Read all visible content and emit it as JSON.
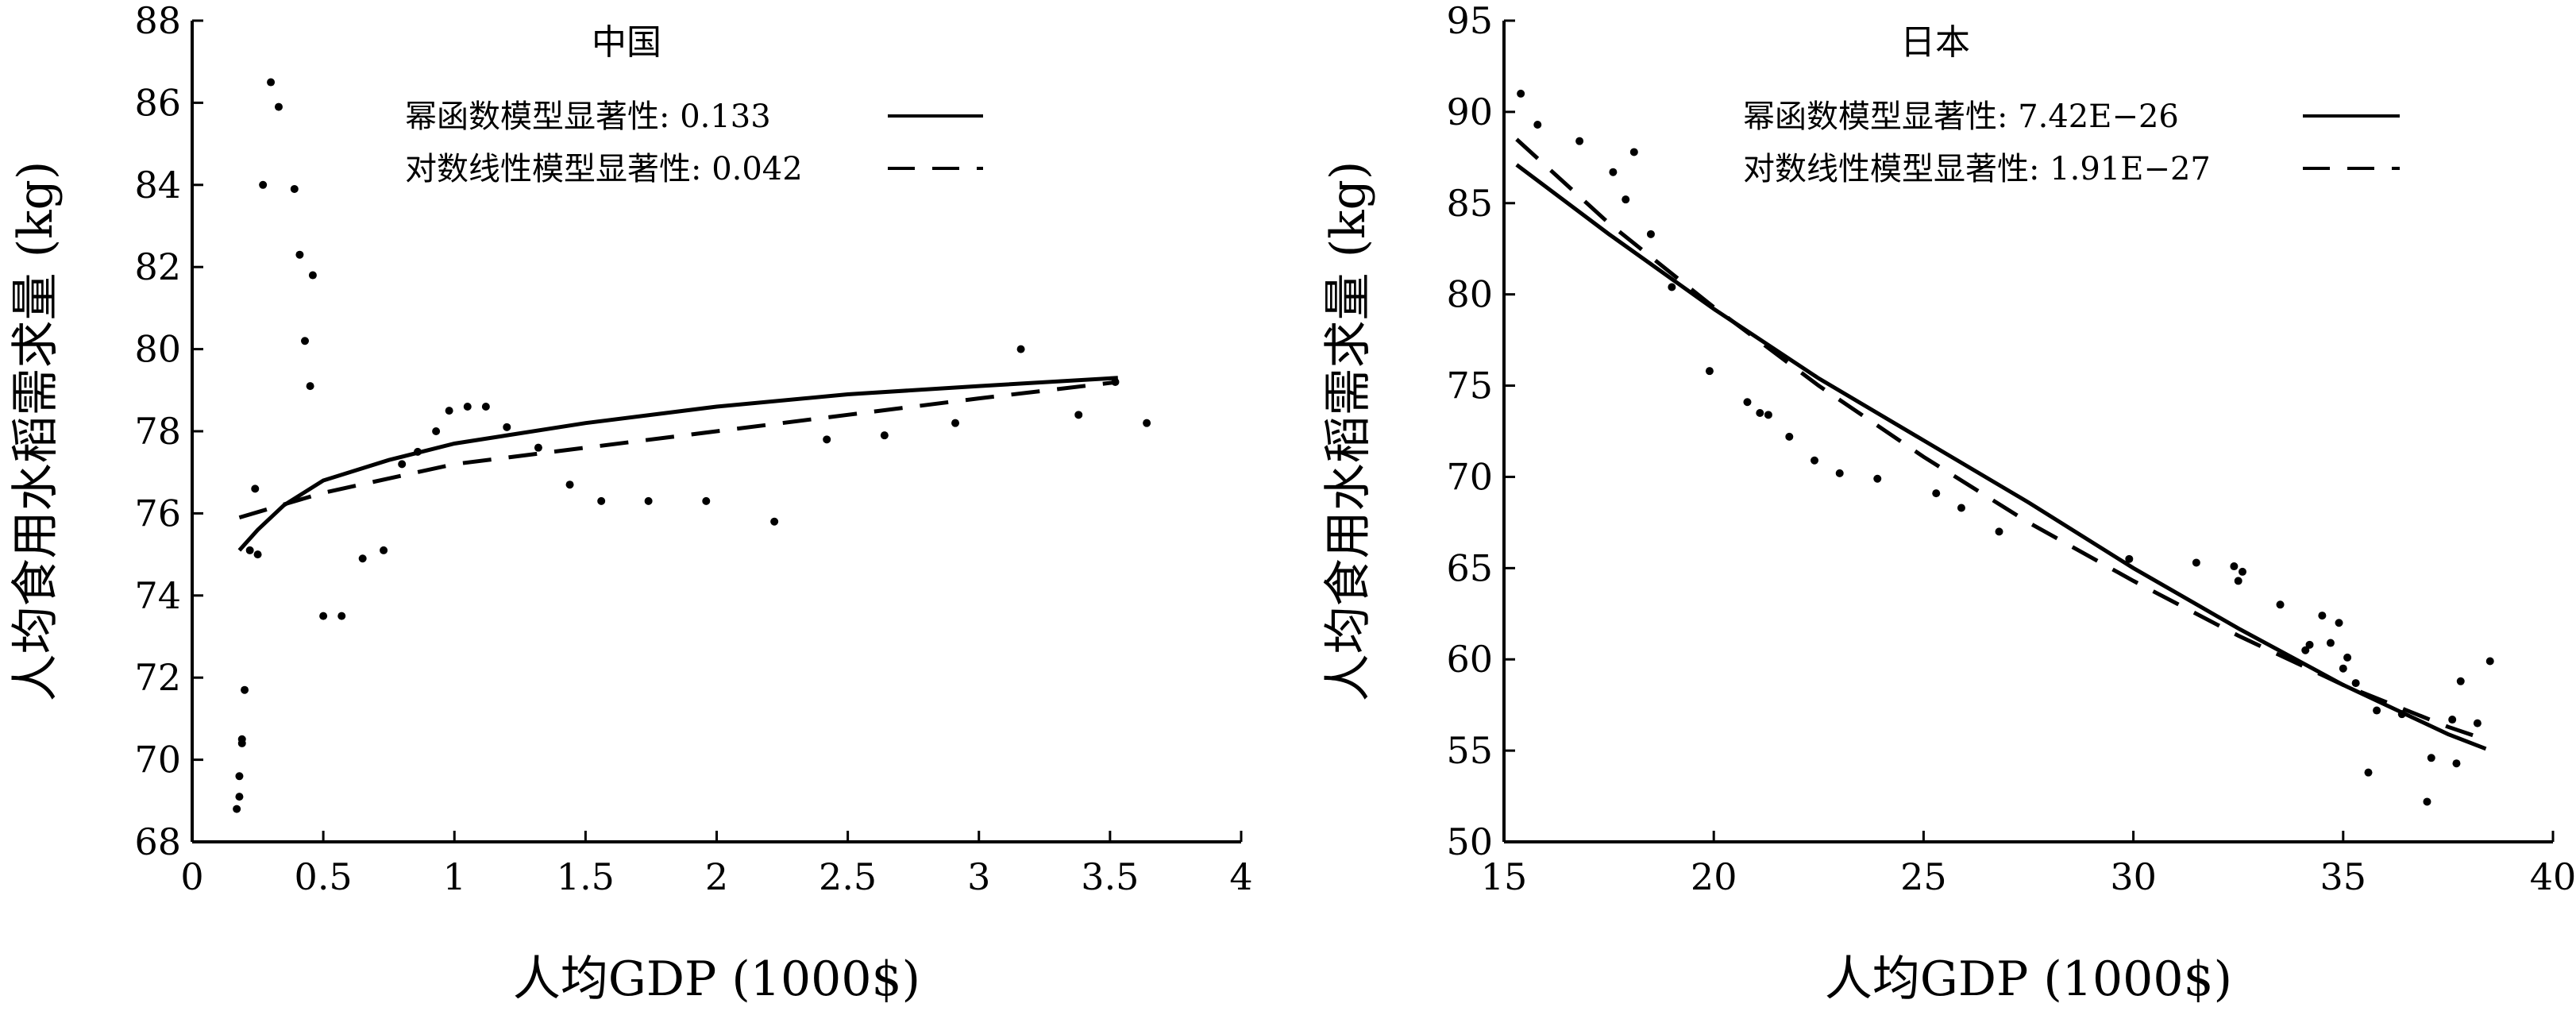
{
  "chart_data": [
    {
      "type": "scatter",
      "title": "中国",
      "xlabel": "人均GDP (1000$)",
      "ylabel": "人均食用水稻需求量 (kg)",
      "xlim": [
        0,
        4
      ],
      "ylim": [
        68,
        88
      ],
      "xticks": [
        0,
        0.5,
        1,
        1.5,
        2,
        2.5,
        3,
        3.5,
        4
      ],
      "yticks": [
        68,
        70,
        72,
        74,
        76,
        78,
        80,
        82,
        84,
        86,
        88
      ],
      "xtick_labels": [
        "0",
        "0.5",
        "1",
        "1.5",
        "2",
        "2.5",
        "3",
        "3.5",
        "4"
      ],
      "ytick_labels": [
        "68",
        "70",
        "72",
        "74",
        "76",
        "78",
        "80",
        "82",
        "84",
        "86",
        "88"
      ],
      "grid": false,
      "legend_position": "top-center",
      "legend": [
        {
          "label": "幂函数模型显著性: 0.133",
          "style": "solid"
        },
        {
          "label": "对数线性模型显著性: 0.042",
          "style": "dashed"
        }
      ],
      "series": [
        {
          "kind": "points",
          "x": [
            0.17,
            0.18,
            0.18,
            0.19,
            0.19,
            0.2,
            0.22,
            0.24,
            0.25,
            0.27,
            0.3,
            0.33,
            0.39,
            0.41,
            0.43,
            0.45,
            0.46,
            0.5,
            0.57,
            0.65,
            0.73,
            0.8,
            0.86,
            0.93,
            0.98,
            1.05,
            1.12,
            1.2,
            1.32,
            1.44,
            1.56,
            1.74,
            1.96,
            2.22,
            2.42,
            2.64,
            2.91,
            3.16,
            3.38,
            3.52,
            3.64
          ],
          "y": [
            68.8,
            69.1,
            69.6,
            70.4,
            70.5,
            71.7,
            75.1,
            76.6,
            75.0,
            84.0,
            86.5,
            85.9,
            83.9,
            82.3,
            80.2,
            79.1,
            81.8,
            73.5,
            73.5,
            74.9,
            75.1,
            77.2,
            77.5,
            78.0,
            78.5,
            78.6,
            78.6,
            78.1,
            77.6,
            76.7,
            76.3,
            76.3,
            76.3,
            75.8,
            77.8,
            77.9,
            78.2,
            80.0,
            78.4,
            79.2,
            78.2
          ]
        },
        {
          "kind": "line",
          "name": "幂函数模型",
          "style": "solid",
          "x": [
            0.18,
            0.25,
            0.35,
            0.5,
            0.75,
            1.0,
            1.5,
            2.0,
            2.5,
            3.0,
            3.53
          ],
          "y": [
            75.1,
            75.6,
            76.2,
            76.8,
            77.3,
            77.7,
            78.2,
            78.6,
            78.9,
            79.1,
            79.3
          ]
        },
        {
          "kind": "line",
          "name": "对数线性模型",
          "style": "dashed",
          "x": [
            0.18,
            0.5,
            1.0,
            1.5,
            2.0,
            2.5,
            3.0,
            3.53
          ],
          "y": [
            75.9,
            76.5,
            77.2,
            77.6,
            78.0,
            78.4,
            78.8,
            79.2
          ]
        }
      ]
    },
    {
      "type": "scatter",
      "title": "日本",
      "xlabel": "人均GDP (1000$)",
      "ylabel": "人均食用水稻需求量 (kg)",
      "xlim": [
        15,
        40
      ],
      "ylim": [
        50,
        95
      ],
      "xticks": [
        15,
        20,
        25,
        30,
        35,
        40
      ],
      "yticks": [
        50,
        55,
        60,
        65,
        70,
        75,
        80,
        85,
        90,
        95
      ],
      "xtick_labels": [
        "15",
        "20",
        "25",
        "30",
        "35",
        "40"
      ],
      "ytick_labels": [
        "50",
        "55",
        "60",
        "65",
        "70",
        "75",
        "80",
        "85",
        "90",
        "95"
      ],
      "grid": false,
      "legend_position": "top-center",
      "legend": [
        {
          "label": "幂函数模型显著性: 7.42E−26",
          "style": "solid"
        },
        {
          "label": "对数线性模型显著性: 1.91E−27",
          "style": "dashed"
        }
      ],
      "series": [
        {
          "kind": "points",
          "x": [
            15.4,
            15.8,
            16.8,
            17.6,
            17.9,
            18.1,
            18.5,
            19.0,
            19.9,
            20.8,
            21.1,
            21.3,
            21.8,
            22.4,
            23.0,
            23.9,
            25.3,
            25.9,
            26.8,
            29.9,
            31.5,
            32.4,
            32.5,
            32.6,
            33.5,
            34.1,
            34.2,
            34.5,
            34.7,
            34.9,
            35.0,
            35.1,
            35.3,
            35.6,
            35.8,
            36.4,
            37.0,
            37.1,
            37.6,
            37.7,
            37.8,
            38.2,
            38.5
          ],
          "y": [
            91.0,
            89.3,
            88.4,
            86.7,
            85.2,
            87.8,
            83.3,
            80.4,
            75.8,
            74.1,
            73.5,
            73.4,
            72.2,
            70.9,
            70.2,
            69.9,
            69.1,
            68.3,
            67.0,
            65.5,
            65.3,
            65.1,
            64.3,
            64.8,
            63.0,
            60.5,
            60.8,
            62.4,
            60.9,
            62.0,
            59.5,
            60.1,
            58.7,
            53.8,
            57.2,
            57.0,
            52.2,
            54.6,
            56.7,
            54.3,
            58.8,
            56.5,
            59.9
          ]
        },
        {
          "kind": "line",
          "name": "幂函数模型",
          "style": "solid",
          "x": [
            15.3,
            17.5,
            20.0,
            22.5,
            25.0,
            27.5,
            30.0,
            32.5,
            35.0,
            37.5,
            38.4
          ],
          "y": [
            87.1,
            83.3,
            79.2,
            75.4,
            72.0,
            68.6,
            65.0,
            61.7,
            58.6,
            55.9,
            55.1
          ]
        },
        {
          "kind": "line",
          "name": "对数线性模型",
          "style": "dashed",
          "x": [
            15.3,
            17.5,
            20.0,
            22.5,
            25.0,
            27.5,
            30.0,
            32.5,
            35.0,
            37.5,
            38.4
          ],
          "y": [
            88.5,
            83.9,
            79.3,
            75.0,
            71.1,
            67.5,
            64.3,
            61.3,
            58.6,
            56.3,
            55.6
          ]
        }
      ]
    }
  ]
}
